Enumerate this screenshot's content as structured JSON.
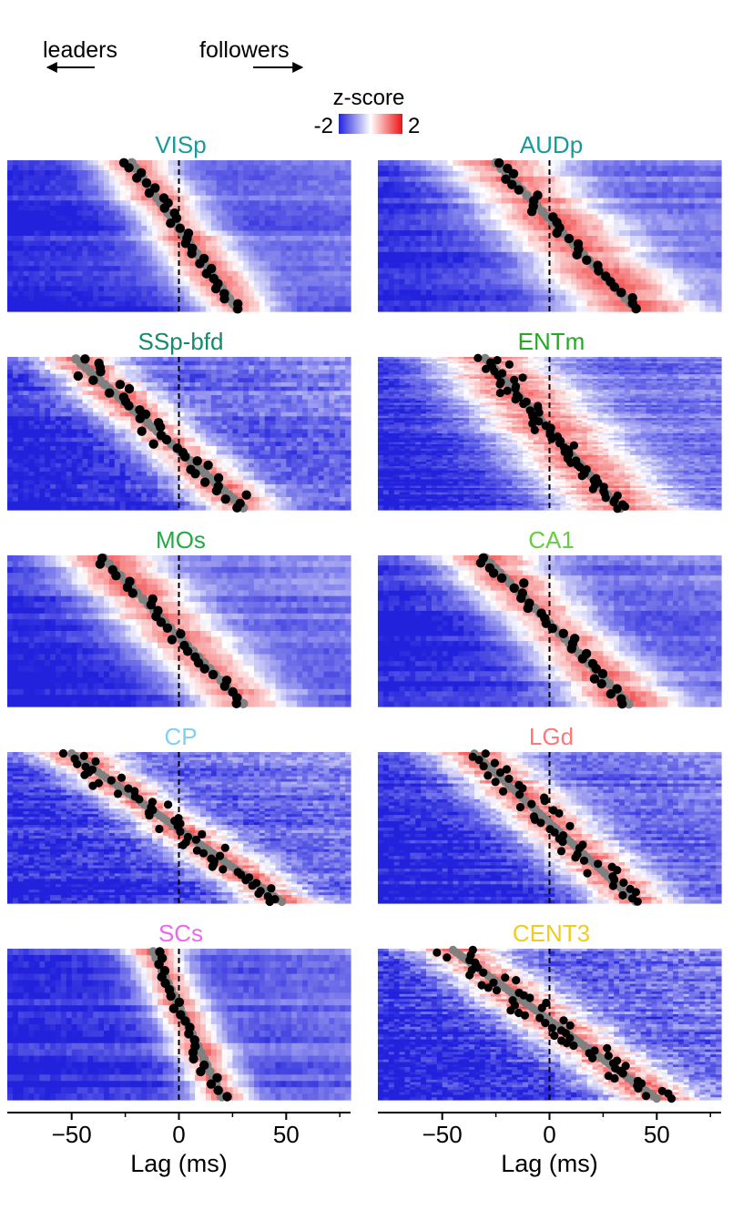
{
  "header": {
    "leaders_label": "leaders",
    "followers_label": "followers",
    "colorbar_title": "z-score",
    "colorbar_min_label": "-2",
    "colorbar_max_label": "2"
  },
  "colors": {
    "low": "#2222dd",
    "mid": "#ffffff",
    "high": "#ee1111",
    "dot_black": "#000000",
    "dot_gray": "#808080"
  },
  "chart_data": {
    "type": "heatmap",
    "x_range": [
      -80,
      80
    ],
    "x_ticks": [
      -50,
      0,
      50
    ],
    "xlabel": "Lag (ms)",
    "colorbar_range": [
      -2,
      2
    ],
    "reference_line_x": 0,
    "panels": [
      {
        "name": "VISp",
        "title_color": "#1a9a9a",
        "n_rows": 30,
        "sort_from_ms": -22,
        "sort_to_ms": 27,
        "peak_width_ms": 14,
        "noise": 0.3
      },
      {
        "name": "AUDp",
        "title_color": "#1a9a9a",
        "n_rows": 28,
        "sort_from_ms": -25,
        "sort_to_ms": 40,
        "peak_width_ms": 22,
        "noise": 0.35
      },
      {
        "name": "SSp-bfd",
        "title_color": "#138a6a",
        "n_rows": 36,
        "sort_from_ms": -48,
        "sort_to_ms": 30,
        "peak_width_ms": 15,
        "noise": 0.6
      },
      {
        "name": "ENTm",
        "title_color": "#22aa22",
        "n_rows": 70,
        "sort_from_ms": -30,
        "sort_to_ms": 33,
        "peak_width_ms": 22,
        "noise": 0.5
      },
      {
        "name": "MOs",
        "title_color": "#22aa44",
        "n_rows": 26,
        "sort_from_ms": -35,
        "sort_to_ms": 30,
        "peak_width_ms": 18,
        "noise": 0.35
      },
      {
        "name": "CA1",
        "title_color": "#66cc44",
        "n_rows": 30,
        "sort_from_ms": -30,
        "sort_to_ms": 37,
        "peak_width_ms": 18,
        "noise": 0.4
      },
      {
        "name": "CP",
        "title_color": "#80d0f0",
        "n_rows": 56,
        "sort_from_ms": -50,
        "sort_to_ms": 48,
        "peak_width_ms": 14,
        "noise": 0.7
      },
      {
        "name": "LGd",
        "title_color": "#ff7777",
        "n_rows": 48,
        "sort_from_ms": -35,
        "sort_to_ms": 40,
        "peak_width_ms": 16,
        "noise": 0.6
      },
      {
        "name": "SCs",
        "title_color": "#ee66ee",
        "n_rows": 24,
        "sort_from_ms": -12,
        "sort_to_ms": 20,
        "peak_width_ms": 10,
        "noise": 0.35
      },
      {
        "name": "CENT3",
        "title_color": "#f0cc22",
        "n_rows": 60,
        "sort_from_ms": -45,
        "sort_to_ms": 50,
        "peak_width_ms": 16,
        "noise": 0.85
      }
    ]
  }
}
